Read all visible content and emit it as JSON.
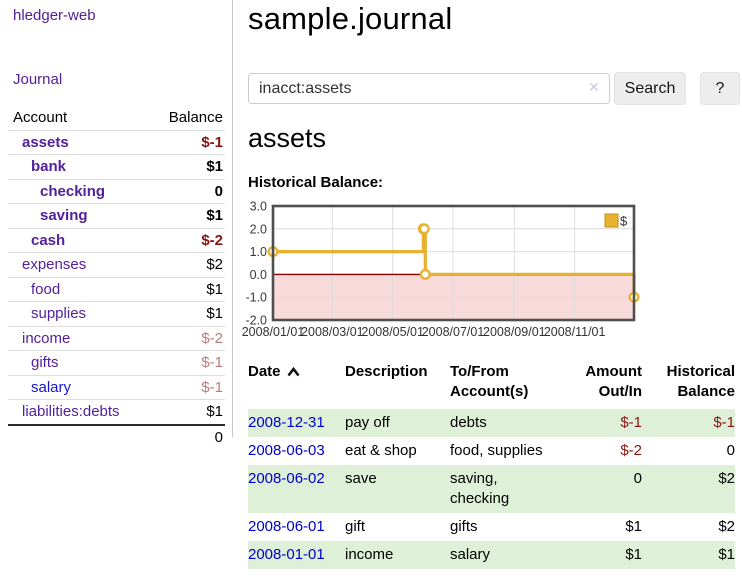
{
  "colors": {
    "link_purple": "#54209b",
    "link_blue": "#0000cc",
    "negative": "#8b1212",
    "negative_dim": "#bb7b7b",
    "row_stripe_green": "#dff0d8",
    "chart_line_gold": "#e8b22e",
    "chart_negative_area_pink": "#f9dada",
    "chart_zero_line_red": "#8b0000"
  },
  "sidebar": {
    "brand": "hledger-web",
    "journal_link": "Journal",
    "table_headers": {
      "account": "Account",
      "balance": "Balance"
    },
    "accounts": [
      {
        "name": "assets",
        "indent": 0,
        "bold": true,
        "balance": "$-1",
        "balance_class": "bal-neg-strong"
      },
      {
        "name": "bank",
        "indent": 1,
        "bold": true,
        "balance": "$1",
        "balance_class": "bal-pos-strong"
      },
      {
        "name": "checking",
        "indent": 2,
        "bold": true,
        "balance": "0",
        "balance_class": "bal-pos-strong"
      },
      {
        "name": "saving",
        "indent": 2,
        "bold": true,
        "balance": "$1",
        "balance_class": "bal-pos-strong"
      },
      {
        "name": "cash",
        "indent": 1,
        "bold": true,
        "balance": "$-2",
        "balance_class": "bal-neg-strong"
      },
      {
        "name": "expenses",
        "indent": 0,
        "bold": false,
        "balance": "$2",
        "balance_class": "bal-pos"
      },
      {
        "name": "food",
        "indent": 1,
        "bold": false,
        "balance": "$1",
        "balance_class": "bal-pos"
      },
      {
        "name": "supplies",
        "indent": 1,
        "bold": false,
        "balance": "$1",
        "balance_class": "bal-pos"
      },
      {
        "name": "income",
        "indent": 0,
        "bold": false,
        "balance": "$-2",
        "balance_class": "bal-neg-dim"
      },
      {
        "name": "gifts",
        "indent": 1,
        "bold": false,
        "balance": "$-1",
        "balance_class": "bal-neg-dim"
      },
      {
        "name": "salary",
        "indent": 1,
        "bold": false,
        "balance": "$-1",
        "balance_class": "bal-neg-dim",
        "link_class": "unvisited"
      },
      {
        "name": "liabilities:debts",
        "indent": 0,
        "bold": false,
        "balance": "$1",
        "balance_class": "bal-pos"
      }
    ],
    "total": "0"
  },
  "header": {
    "title": "sample.journal"
  },
  "search": {
    "value": "inacct:assets",
    "clear_icon": "✕",
    "search_button": "Search",
    "help_button": "?"
  },
  "main": {
    "account_heading": "assets",
    "chart_label": "Historical Balance:"
  },
  "chart_data": {
    "type": "line",
    "step": true,
    "series": [
      {
        "name": "$",
        "points": [
          [
            "2008-01-01",
            1
          ],
          [
            "2008-06-01",
            2
          ],
          [
            "2008-06-02",
            2
          ],
          [
            "2008-06-03",
            0
          ],
          [
            "2008-12-31",
            -1
          ]
        ]
      }
    ],
    "x_range": [
      "2008-01-01",
      "2008-12-31"
    ],
    "ylim": [
      -2,
      3
    ],
    "yticks": [
      3,
      2,
      1,
      0,
      -1,
      -2
    ],
    "ytick_labels": [
      "3.0",
      "2.0",
      "1.0",
      "0.0",
      "-1.0",
      "-2.0"
    ],
    "xticks": [
      "2008-01-01",
      "2008-03-01",
      "2008-05-01",
      "2008-07-01",
      "2008-09-01",
      "2008-11-01"
    ],
    "xtick_labels": [
      "2008/01/01",
      "2008/03/01",
      "2008/05/01",
      "2008/07/01",
      "2008/09/01",
      "2008/11/01"
    ],
    "legend": {
      "label": "$",
      "position": "top-right"
    },
    "grid": true,
    "line_color": "#e8b22e",
    "zero_line_color": "#8b0000",
    "negative_area_color": "#f9dada"
  },
  "table": {
    "headers": [
      {
        "label": "Date",
        "sorted": "asc"
      },
      {
        "label": "Description"
      },
      {
        "label": "To/From Account(s)"
      },
      {
        "label": "Amount Out/In"
      },
      {
        "label": "Historical Balance"
      }
    ],
    "rows": [
      {
        "date": "2008-12-31",
        "description": "pay off",
        "accounts": "debts",
        "amount": "$-1",
        "amount_neg": true,
        "balance": "$-1",
        "balance_neg": true
      },
      {
        "date": "2008-06-03",
        "description": "eat & shop",
        "accounts": "food, supplies",
        "amount": "$-2",
        "amount_neg": true,
        "balance": "0",
        "balance_neg": false
      },
      {
        "date": "2008-06-02",
        "description": "save",
        "accounts": "saving, checking",
        "amount": "0",
        "amount_neg": false,
        "balance": "$2",
        "balance_neg": false
      },
      {
        "date": "2008-06-01",
        "description": "gift",
        "accounts": "gifts",
        "amount": "$1",
        "amount_neg": false,
        "balance": "$2",
        "balance_neg": false
      },
      {
        "date": "2008-01-01",
        "description": "income",
        "accounts": "salary",
        "amount": "$1",
        "amount_neg": false,
        "balance": "$1",
        "balance_neg": false
      }
    ]
  }
}
